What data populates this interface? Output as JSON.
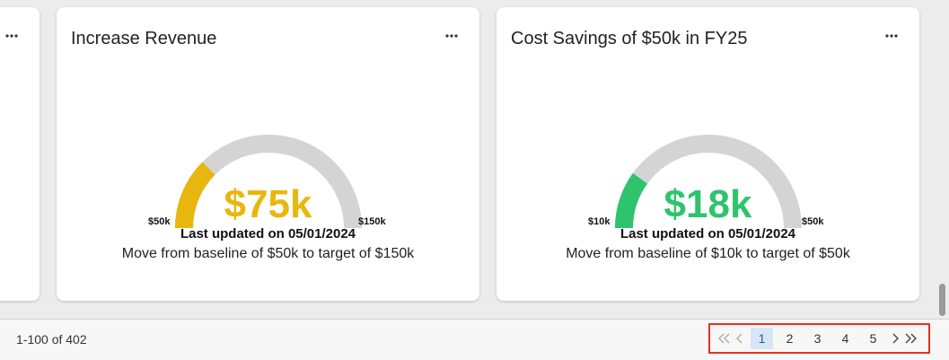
{
  "cards": [
    {
      "title": "Increase Revenue",
      "value": "$75k",
      "min_label": "$50k",
      "max_label": "$150k",
      "progress": 0.25,
      "color": "#e8b70f",
      "updated": "Last updated on 05/01/2024",
      "description": "Move from baseline of $50k to target of $150k"
    },
    {
      "title": "Cost Savings of $50k in FY25",
      "value": "$18k",
      "min_label": "$10k",
      "max_label": "$50k",
      "progress": 0.2,
      "color": "#2ec46d",
      "updated": "Last updated on 05/01/2024",
      "description": "Move from baseline of $10k to target of $50k"
    }
  ],
  "gauge_track_color": "#d4d4d4",
  "more_icon": "more-horizontal-icon",
  "footer": {
    "range_text": "1-100 of 402",
    "pages": [
      "1",
      "2",
      "3",
      "4",
      "5"
    ],
    "active_page": "1",
    "nav_icons": [
      "first-page-icon",
      "previous-page-icon",
      "next-page-icon",
      "last-page-icon"
    ]
  }
}
